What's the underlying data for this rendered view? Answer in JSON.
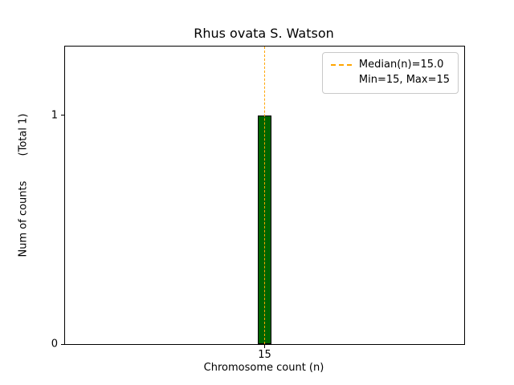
{
  "chart_data": {
    "type": "bar",
    "title": "Rhus ovata S. Watson",
    "xlabel": "Chromosome count (n)",
    "ylabel": "Num of counts",
    "ylabel_total": "(Total 1)",
    "categories": [
      15
    ],
    "values": [
      1
    ],
    "bar_width": 0.036,
    "xlim": [
      14.5,
      15.5
    ],
    "ylim": [
      0,
      1.3
    ],
    "x_ticks": [
      15
    ],
    "y_ticks": [
      0,
      1
    ],
    "median": 15.0,
    "min": 15,
    "max": 15,
    "grid": false,
    "legend": {
      "position": "upper right",
      "items": [
        {
          "handle": "dashed-line",
          "label": "Median(n)=15.0",
          "color": "#FFA500"
        },
        {
          "handle": "none",
          "label": "Min=15, Max=15",
          "color": ""
        }
      ]
    },
    "colors": {
      "bar_fill": "#006400",
      "bar_edge": "#000000",
      "median_line": "#FFA500",
      "background": "#FFFFFF",
      "spine": "#000000"
    }
  }
}
